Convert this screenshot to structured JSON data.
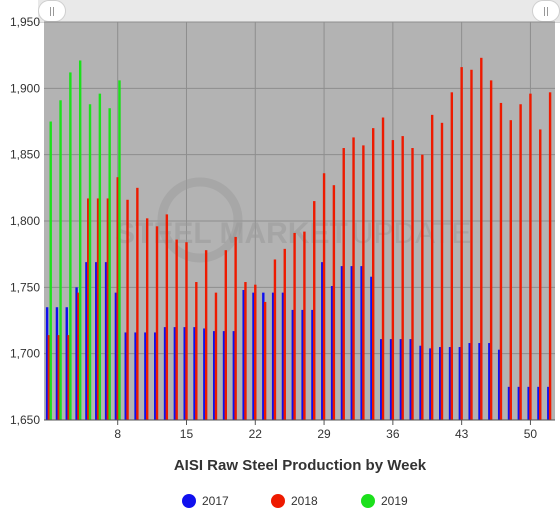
{
  "chart_data": {
    "type": "bar",
    "xlabel": "AISI Raw Steel Production by Week",
    "ylabel": "",
    "ylim": [
      1650,
      1950
    ],
    "yticks": [
      1650,
      1700,
      1750,
      1800,
      1850,
      1900,
      1950
    ],
    "yticklabels": [
      "1,650",
      "1,700",
      "1,750",
      "1,800",
      "1,850",
      "1,900",
      "1,950"
    ],
    "xlim": [
      0.5,
      52.5
    ],
    "xticks": [
      8,
      15,
      22,
      29,
      36,
      43,
      50
    ],
    "grid": true,
    "legend": "bottom",
    "watermark": {
      "bold": "STEEL MARKET",
      "light": "UPDATE"
    },
    "series": [
      {
        "name": "2017",
        "color": "#1010ee",
        "x": [
          1,
          2,
          3,
          4,
          5,
          6,
          7,
          8,
          9,
          10,
          11,
          12,
          13,
          14,
          15,
          16,
          17,
          18,
          19,
          20,
          21,
          22,
          23,
          24,
          25,
          26,
          27,
          28,
          29,
          30,
          31,
          32,
          33,
          34,
          35,
          36,
          37,
          38,
          39,
          40,
          41,
          42,
          43,
          44,
          45,
          46,
          47,
          48,
          49,
          50,
          51,
          52
        ],
        "values": [
          1735,
          1735,
          1735,
          1750,
          1769,
          1769,
          1769,
          1746,
          1716,
          1716,
          1716,
          1716,
          1720,
          1720,
          1720,
          1720,
          1719,
          1717,
          1717,
          1717,
          1748,
          1746,
          1746,
          1746,
          1746,
          1733,
          1733,
          1733,
          1769,
          1751,
          1766,
          1766,
          1766,
          1758,
          1711,
          1711,
          1711,
          1711,
          1706,
          1704,
          1705,
          1705,
          1705,
          1708,
          1708,
          1708,
          1703,
          1675,
          1675,
          1675,
          1675,
          1675
        ]
      },
      {
        "name": "2018",
        "color": "#ee1a00",
        "x": [
          1,
          2,
          3,
          4,
          5,
          6,
          7,
          8,
          9,
          10,
          11,
          12,
          13,
          14,
          15,
          16,
          17,
          18,
          19,
          20,
          21,
          22,
          23,
          24,
          25,
          26,
          27,
          28,
          29,
          30,
          31,
          32,
          33,
          34,
          35,
          36,
          37,
          38,
          39,
          40,
          41,
          42,
          43,
          44,
          45,
          46,
          47,
          48,
          49,
          50,
          51,
          52
        ],
        "values": [
          1714,
          1714,
          1714,
          1746,
          1817,
          1817,
          1817,
          1833,
          1816,
          1825,
          1802,
          1796,
          1805,
          1786,
          1784,
          1754,
          1778,
          1746,
          1778,
          1788,
          1754,
          1752,
          1739,
          1771,
          1779,
          1791,
          1792,
          1815,
          1836,
          1827,
          1855,
          1863,
          1857,
          1870,
          1878,
          1861,
          1864,
          1855,
          1850,
          1880,
          1874,
          1897,
          1916,
          1914,
          1923,
          1906,
          1889,
          1876,
          1888,
          1896,
          1869,
          1897
        ]
      },
      {
        "name": "2019",
        "color": "#1ce01c",
        "x": [
          1,
          2,
          3,
          4,
          5,
          6,
          7,
          8
        ],
        "values": [
          1875,
          1891,
          1912,
          1921,
          1888,
          1896,
          1885,
          1906
        ]
      }
    ]
  }
}
